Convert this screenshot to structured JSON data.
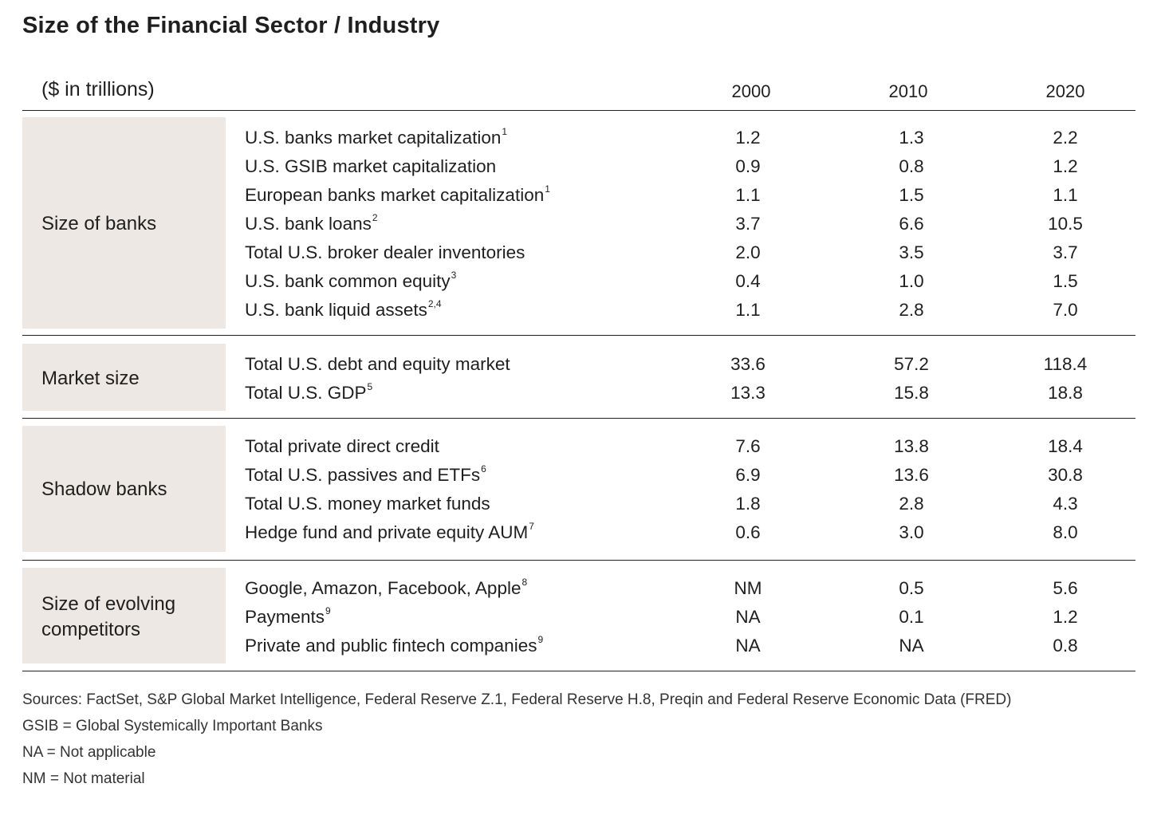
{
  "title": "Size of the Financial Sector / Industry",
  "header": {
    "unit": "($ in trillions)",
    "years": [
      "2000",
      "2010",
      "2020"
    ]
  },
  "sections": [
    {
      "group": "Size of banks",
      "rows": [
        {
          "label": "U.S. banks market capitalization",
          "note": "1",
          "values": [
            "1.2",
            "1.3",
            "2.2"
          ]
        },
        {
          "label": "U.S. GSIB market capitalization",
          "note": "",
          "values": [
            "0.9",
            "0.8",
            "1.2"
          ]
        },
        {
          "label": "European banks market capitalization",
          "note": "1",
          "values": [
            "1.1",
            "1.5",
            "1.1"
          ]
        },
        {
          "label": "U.S. bank loans",
          "note": "2",
          "values": [
            "3.7",
            "6.6",
            "10.5"
          ]
        },
        {
          "label": "Total U.S. broker dealer inventories",
          "note": "",
          "values": [
            "2.0",
            "3.5",
            "3.7"
          ]
        },
        {
          "label": "U.S. bank common equity",
          "note": "3",
          "values": [
            "0.4",
            "1.0",
            "1.5"
          ]
        },
        {
          "label": "U.S. bank liquid assets",
          "note": "2,4",
          "values": [
            "1.1",
            "2.8",
            "7.0"
          ]
        }
      ]
    },
    {
      "group": "Market size",
      "rows": [
        {
          "label": "Total U.S. debt and equity market",
          "note": "",
          "values": [
            "33.6",
            "57.2",
            "118.4"
          ]
        },
        {
          "label": "Total U.S. GDP",
          "note": "5",
          "values": [
            "13.3",
            "15.8",
            "18.8"
          ]
        }
      ]
    },
    {
      "group": "Shadow banks",
      "rows": [
        {
          "label": "Total private direct credit",
          "note": "",
          "values": [
            "7.6",
            "13.8",
            "18.4"
          ]
        },
        {
          "label": "Total U.S. passives and ETFs",
          "note": "6",
          "values": [
            "6.9",
            "13.6",
            "30.8"
          ]
        },
        {
          "label": "Total U.S. money market funds",
          "note": "",
          "values": [
            "1.8",
            "2.8",
            "4.3"
          ]
        },
        {
          "label": "Hedge fund and private equity AUM",
          "note": "7",
          "values": [
            "0.6",
            "3.0",
            "8.0"
          ]
        }
      ]
    },
    {
      "group": "Size of evolving competitors",
      "group_lines": [
        "Size of evolving",
        "competitors"
      ],
      "rows": [
        {
          "label": "Google, Amazon, Facebook, Apple",
          "note": "8",
          "values": [
            "NM",
            "0.5",
            "5.6"
          ]
        },
        {
          "label": "Payments",
          "note": "9",
          "values": [
            "NA",
            "0.1",
            "1.2"
          ]
        },
        {
          "label": "Private and public fintech companies",
          "note": "9",
          "values": [
            "NA",
            "NA",
            "0.8"
          ]
        }
      ]
    }
  ],
  "notes": [
    "Sources: FactSet, S&P Global Market Intelligence, Federal Reserve Z.1, Federal Reserve H.8, Preqin and Federal Reserve Economic Data (FRED)",
    "GSIB = Global Systemically Important Banks",
    "NA = Not applicable",
    "NM = Not material"
  ]
}
